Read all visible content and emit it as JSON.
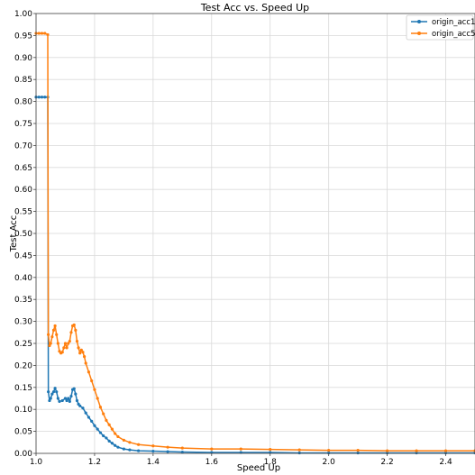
{
  "chart_data": {
    "type": "line",
    "title": "Test Acc vs. Speed Up",
    "xlabel": "Speed Up",
    "ylabel": "Test Acc",
    "xlim": [
      1.0,
      2.5
    ],
    "ylim": [
      0.0,
      1.0
    ],
    "grid": true,
    "legend_position": "top-right",
    "x_ticks": [
      "1.0",
      "1.2",
      "1.4",
      "1.6",
      "1.8",
      "2.0",
      "2.2",
      "2.4"
    ],
    "y_ticks": [
      "0.00",
      "0.05",
      "0.10",
      "0.15",
      "0.20",
      "0.25",
      "0.30",
      "0.35",
      "0.40",
      "0.45",
      "0.50",
      "0.55",
      "0.60",
      "0.65",
      "0.70",
      "0.75",
      "0.80",
      "0.85",
      "0.90",
      "0.95",
      "1.00"
    ],
    "series": [
      {
        "name": "origin_acc1",
        "color": "#1f77b4",
        "points": [
          [
            1.0,
            0.81
          ],
          [
            1.01,
            0.81
          ],
          [
            1.02,
            0.81
          ],
          [
            1.03,
            0.81
          ],
          [
            1.04,
            0.81
          ],
          [
            1.042,
            0.14
          ],
          [
            1.046,
            0.12
          ],
          [
            1.05,
            0.125
          ],
          [
            1.055,
            0.135
          ],
          [
            1.06,
            0.14
          ],
          [
            1.065,
            0.148
          ],
          [
            1.07,
            0.14
          ],
          [
            1.075,
            0.125
          ],
          [
            1.08,
            0.118
          ],
          [
            1.09,
            0.12
          ],
          [
            1.1,
            0.125
          ],
          [
            1.105,
            0.12
          ],
          [
            1.11,
            0.125
          ],
          [
            1.115,
            0.118
          ],
          [
            1.12,
            0.13
          ],
          [
            1.125,
            0.145
          ],
          [
            1.13,
            0.147
          ],
          [
            1.135,
            0.135
          ],
          [
            1.14,
            0.12
          ],
          [
            1.145,
            0.112
          ],
          [
            1.15,
            0.108
          ],
          [
            1.16,
            0.103
          ],
          [
            1.17,
            0.092
          ],
          [
            1.18,
            0.082
          ],
          [
            1.19,
            0.073
          ],
          [
            1.2,
            0.063
          ],
          [
            1.21,
            0.055
          ],
          [
            1.22,
            0.047
          ],
          [
            1.23,
            0.04
          ],
          [
            1.24,
            0.035
          ],
          [
            1.25,
            0.028
          ],
          [
            1.26,
            0.023
          ],
          [
            1.27,
            0.018
          ],
          [
            1.28,
            0.014
          ],
          [
            1.3,
            0.01
          ],
          [
            1.32,
            0.008
          ],
          [
            1.35,
            0.006
          ],
          [
            1.4,
            0.005
          ],
          [
            1.45,
            0.004
          ],
          [
            1.5,
            0.003
          ],
          [
            1.6,
            0.002
          ],
          [
            1.7,
            0.002
          ],
          [
            1.8,
            0.002
          ],
          [
            1.9,
            0.001
          ],
          [
            2.0,
            0.001
          ],
          [
            2.1,
            0.001
          ],
          [
            2.2,
            0.001
          ],
          [
            2.3,
            0.001
          ],
          [
            2.4,
            0.001
          ],
          [
            2.5,
            0.001
          ]
        ]
      },
      {
        "name": "origin_acc5",
        "color": "#ff7f0e",
        "points": [
          [
            1.0,
            0.955
          ],
          [
            1.01,
            0.955
          ],
          [
            1.02,
            0.955
          ],
          [
            1.03,
            0.955
          ],
          [
            1.04,
            0.952
          ],
          [
            1.042,
            0.27
          ],
          [
            1.046,
            0.245
          ],
          [
            1.05,
            0.25
          ],
          [
            1.055,
            0.265
          ],
          [
            1.06,
            0.28
          ],
          [
            1.065,
            0.29
          ],
          [
            1.07,
            0.27
          ],
          [
            1.075,
            0.25
          ],
          [
            1.08,
            0.232
          ],
          [
            1.085,
            0.228
          ],
          [
            1.09,
            0.23
          ],
          [
            1.095,
            0.24
          ],
          [
            1.1,
            0.25
          ],
          [
            1.105,
            0.24
          ],
          [
            1.11,
            0.25
          ],
          [
            1.115,
            0.255
          ],
          [
            1.12,
            0.275
          ],
          [
            1.125,
            0.29
          ],
          [
            1.13,
            0.292
          ],
          [
            1.135,
            0.28
          ],
          [
            1.14,
            0.255
          ],
          [
            1.145,
            0.24
          ],
          [
            1.15,
            0.228
          ],
          [
            1.155,
            0.235
          ],
          [
            1.16,
            0.23
          ],
          [
            1.165,
            0.22
          ],
          [
            1.17,
            0.205
          ],
          [
            1.18,
            0.185
          ],
          [
            1.19,
            0.165
          ],
          [
            1.2,
            0.145
          ],
          [
            1.21,
            0.125
          ],
          [
            1.22,
            0.105
          ],
          [
            1.23,
            0.09
          ],
          [
            1.24,
            0.075
          ],
          [
            1.25,
            0.065
          ],
          [
            1.26,
            0.055
          ],
          [
            1.27,
            0.045
          ],
          [
            1.28,
            0.038
          ],
          [
            1.3,
            0.03
          ],
          [
            1.32,
            0.025
          ],
          [
            1.35,
            0.02
          ],
          [
            1.4,
            0.017
          ],
          [
            1.45,
            0.014
          ],
          [
            1.5,
            0.012
          ],
          [
            1.6,
            0.01
          ],
          [
            1.7,
            0.01
          ],
          [
            1.8,
            0.009
          ],
          [
            1.9,
            0.008
          ],
          [
            2.0,
            0.007
          ],
          [
            2.1,
            0.007
          ],
          [
            2.2,
            0.006
          ],
          [
            2.3,
            0.006
          ],
          [
            2.4,
            0.006
          ],
          [
            2.5,
            0.006
          ]
        ]
      }
    ]
  }
}
